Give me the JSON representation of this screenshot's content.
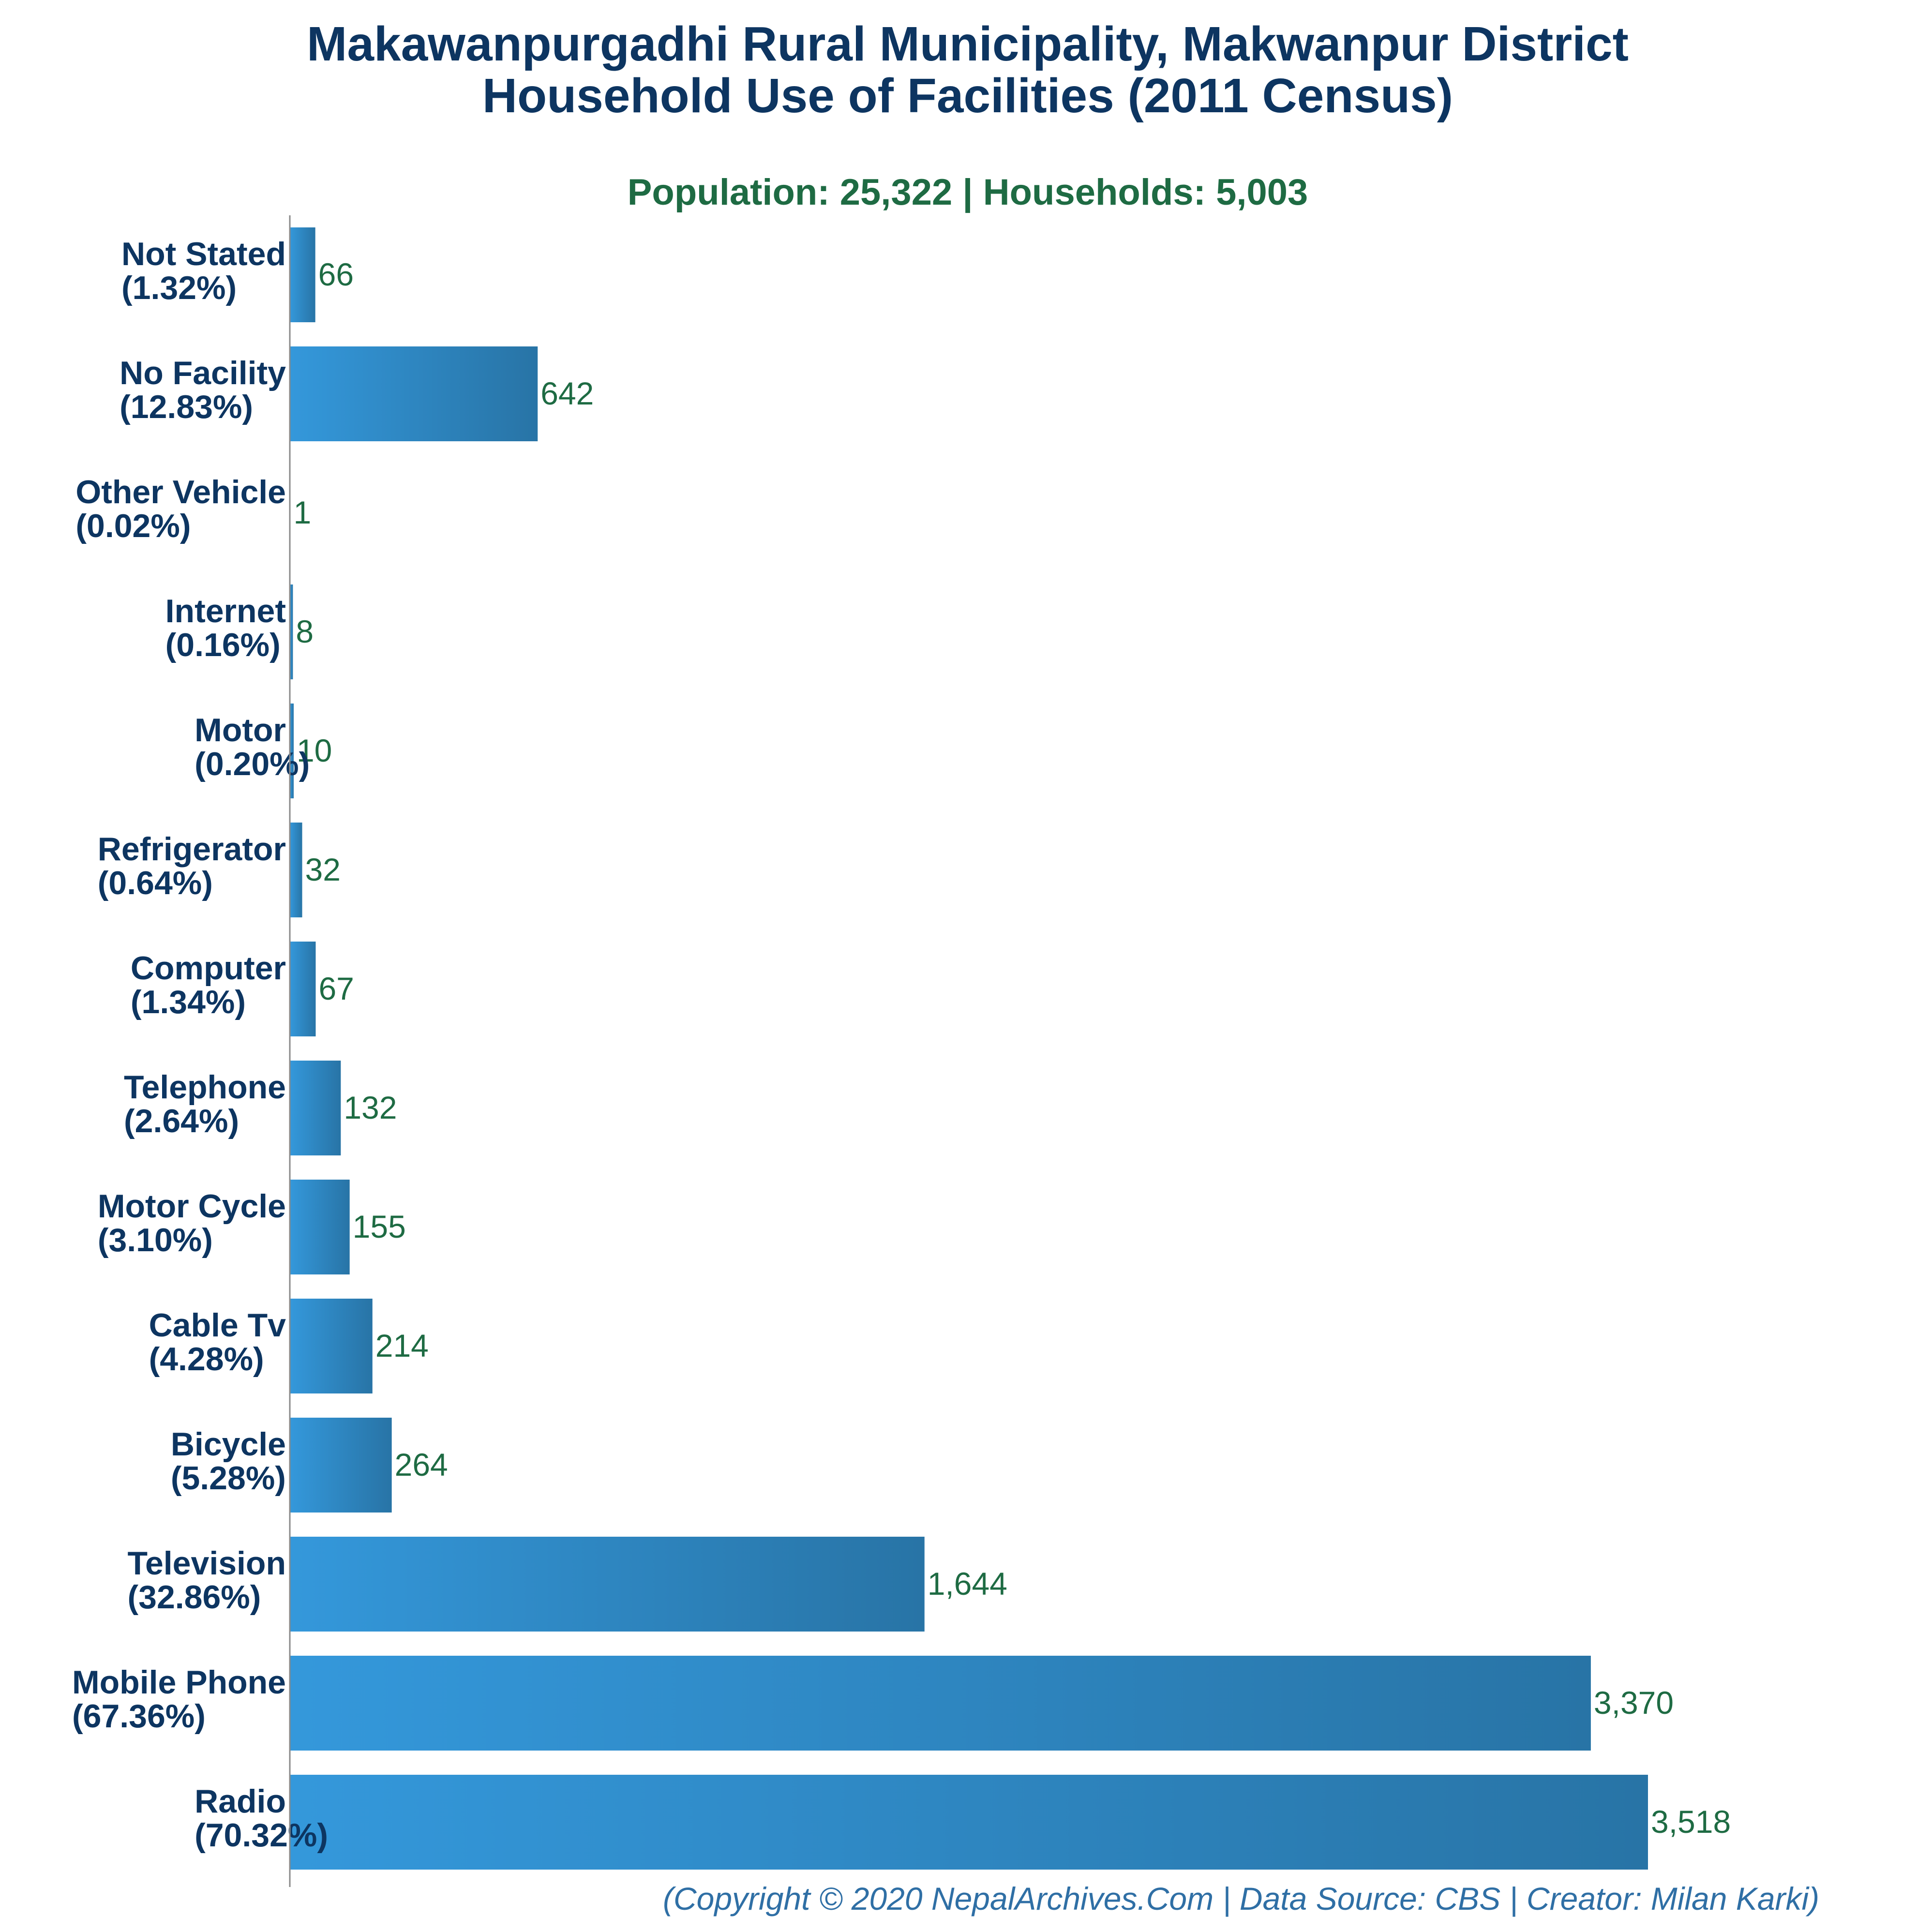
{
  "colors": {
    "title": "#0d3561",
    "subtitle": "#1e6b43",
    "category_label": "#0d3561",
    "value_label": "#1e6b43",
    "footer": "#2f6fa5",
    "bar_light": "#3498db",
    "bar_dark": "#2874a6",
    "axis": "#8a8a8a"
  },
  "chart_data": {
    "type": "bar",
    "orientation": "horizontal",
    "title_line1": "Makawanpurgadhi Rural Municipality, Makwanpur District",
    "title_line2": "Household Use of Facilities (2011 Census)",
    "subtitle": "Population: 25,322 | Households: 5,003",
    "footer": "(Copyright © 2020 NepalArchives.Com | Data Source: CBS | Creator: Milan Karki)",
    "xlim": [
      0,
      3518
    ],
    "grid": false,
    "legend": "none",
    "categories": [
      {
        "name": "Not Stated",
        "percent": "(1.32%)",
        "value": 66,
        "value_label": "66"
      },
      {
        "name": "No Facility",
        "percent": "(12.83%)",
        "value": 642,
        "value_label": "642"
      },
      {
        "name": "Other Vehicle",
        "percent": "(0.02%)",
        "value": 1,
        "value_label": "1"
      },
      {
        "name": "Internet",
        "percent": "(0.16%)",
        "value": 8,
        "value_label": "8"
      },
      {
        "name": "Motor",
        "percent": "(0.20%)",
        "value": 10,
        "value_label": "10"
      },
      {
        "name": "Refrigerator",
        "percent": "(0.64%)",
        "value": 32,
        "value_label": "32"
      },
      {
        "name": "Computer",
        "percent": "(1.34%)",
        "value": 67,
        "value_label": "67"
      },
      {
        "name": "Telephone",
        "percent": "(2.64%)",
        "value": 132,
        "value_label": "132"
      },
      {
        "name": "Motor Cycle",
        "percent": "(3.10%)",
        "value": 155,
        "value_label": "155"
      },
      {
        "name": "Cable Tv",
        "percent": "(4.28%)",
        "value": 214,
        "value_label": "214"
      },
      {
        "name": "Bicycle",
        "percent": "(5.28%)",
        "value": 264,
        "value_label": "264"
      },
      {
        "name": "Television",
        "percent": "(32.86%)",
        "value": 1644,
        "value_label": "1,644"
      },
      {
        "name": "Mobile Phone",
        "percent": "(67.36%)",
        "value": 3370,
        "value_label": "3,370"
      },
      {
        "name": "Radio",
        "percent": "(70.32%)",
        "value": 3518,
        "value_label": "3,518"
      }
    ]
  }
}
